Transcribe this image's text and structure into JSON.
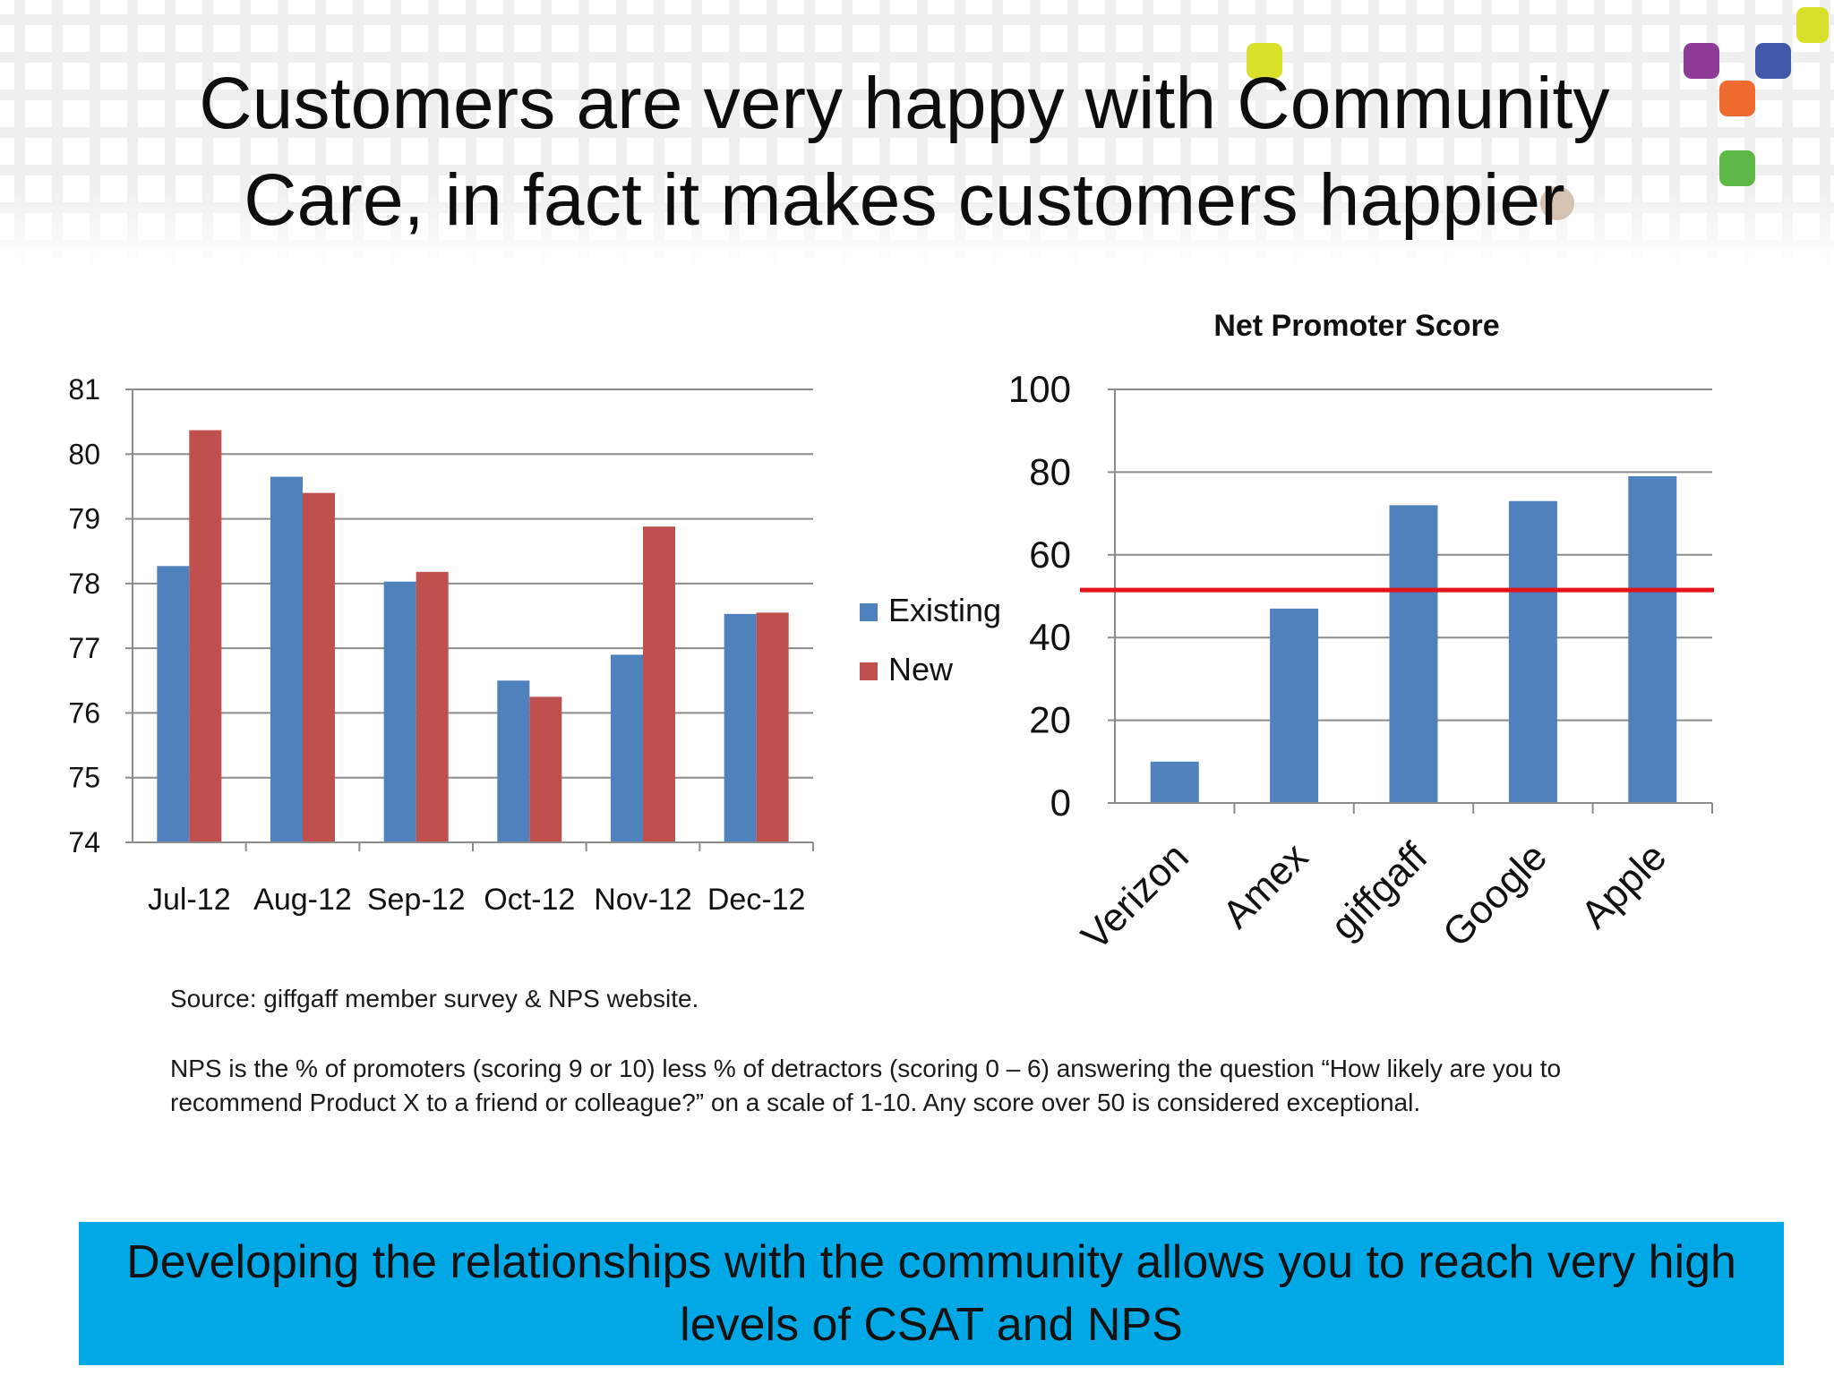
{
  "slide": {
    "title": "Customers are very happy with Community Care, in fact it makes customers happier",
    "source_note": "Source: giffgaff member survey & NPS website.",
    "nps_note": "NPS is the % of promoters (scoring 9 or 10) less % of detractors (scoring 0 – 6) answering the question “How likely are you to recommend Product X to a friend or colleague?” on a scale of 1-10. Any score over 50 is considered exceptional.",
    "banner": "Developing the relationships with the community allows you to reach very high levels of CSAT and NPS"
  },
  "colors": {
    "existing": "#4f81bd",
    "new": "#c0504d",
    "threshold": "#e3141b",
    "banner": "#00a9e6",
    "logo_purple": "#8e3b96",
    "logo_blue": "#3f59a8",
    "logo_orange": "#ef6a2e",
    "logo_green": "#5db848",
    "logo_lime": "#d8e02a",
    "logo_tan": "#d6c2b0"
  },
  "chart_data": [
    {
      "type": "bar",
      "title": "",
      "categories": [
        "Jul-12",
        "Aug-12",
        "Sep-12",
        "Oct-12",
        "Nov-12",
        "Dec-12"
      ],
      "series": [
        {
          "name": "Existing",
          "values": [
            78.27,
            79.65,
            78.03,
            76.5,
            76.9,
            77.53
          ]
        },
        {
          "name": "New",
          "values": [
            80.37,
            79.4,
            78.18,
            76.25,
            78.88,
            77.55
          ]
        }
      ],
      "ylim": [
        74,
        81
      ],
      "yticks": [
        "74",
        "75",
        "76",
        "77",
        "78",
        "79",
        "80",
        "81"
      ],
      "xlabel": "",
      "ylabel": "",
      "grid": true,
      "legend": "right"
    },
    {
      "type": "bar",
      "title": "Net Promoter Score",
      "categories": [
        "Verizon",
        "Amex",
        "giffgaff",
        "Google",
        "Apple"
      ],
      "values": [
        10,
        47,
        72,
        73,
        79
      ],
      "ylim": [
        0,
        100
      ],
      "yticks": [
        "0",
        "20",
        "40",
        "60",
        "80",
        "100"
      ],
      "reference_line": 51.5,
      "xlabel": "",
      "ylabel": "",
      "grid": true,
      "legend": "none"
    }
  ]
}
